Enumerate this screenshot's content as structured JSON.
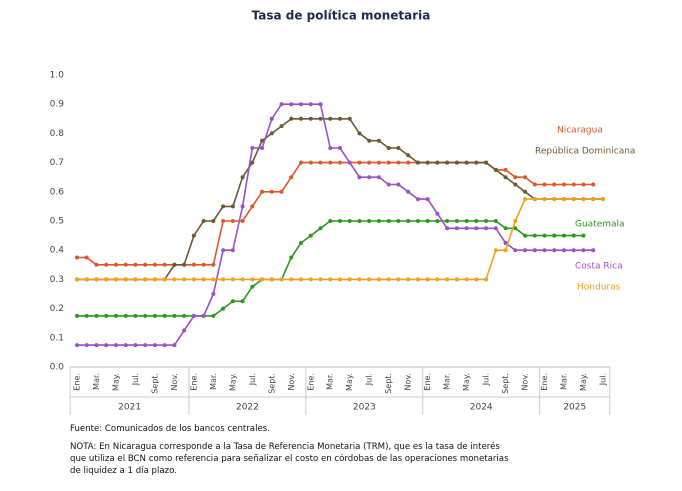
{
  "chart_data": {
    "type": "line",
    "title": "Tasa de política monetaria",
    "categories": [
      "Ene.",
      null,
      "Mar.",
      null,
      "May.",
      null,
      "Jul.",
      null,
      "Sept.",
      null,
      "Nov.",
      null,
      "Ene.",
      null,
      "Mar.",
      null,
      "May.",
      null,
      "Jul.",
      null,
      "Sept.",
      null,
      "Nov.",
      null,
      "Ene.",
      null,
      "Mar.",
      null,
      "May.",
      null,
      "Jul.",
      null,
      "Sept.",
      null,
      "Nov.",
      null,
      "Ene.",
      null,
      "Mar.",
      null,
      "May.",
      null,
      "Jul.",
      null,
      "Sept.",
      null,
      "Nov.",
      null,
      "Ene.",
      null,
      "Mar.",
      null,
      "May.",
      null,
      "Jul."
    ],
    "years": [
      "2021",
      "2022",
      "2023",
      "2024",
      "2025"
    ],
    "ylim": [
      0,
      1
    ],
    "yticks": [
      {
        "value": 0,
        "label": "0.0"
      },
      0.1,
      0.2,
      0.3,
      0.4,
      0.5,
      0.6,
      0.7,
      0.8,
      0.9,
      {
        "value": 1,
        "label": "1.0"
      }
    ],
    "grid": false,
    "series": [
      {
        "name": "Nicaragua",
        "color": "#e0562a",
        "values": [
          0.375,
          0.375,
          0.35,
          0.35,
          0.35,
          0.35,
          0.35,
          0.35,
          0.35,
          0.35,
          0.35,
          0.35,
          0.35,
          0.35,
          0.35,
          0.5,
          0.5,
          0.5,
          0.55,
          0.6,
          0.6,
          0.6,
          0.65,
          0.7,
          0.7,
          0.7,
          0.7,
          0.7,
          0.7,
          0.7,
          0.7,
          0.7,
          0.7,
          0.7,
          0.7,
          0.7,
          0.7,
          0.7,
          0.7,
          0.7,
          0.7,
          0.7,
          0.7,
          0.675,
          0.675,
          0.65,
          0.65,
          0.625,
          0.625,
          0.625,
          0.625,
          0.625,
          0.625,
          0.625,
          null
        ]
      },
      {
        "name": "República Dominicana",
        "color": "#6b5836",
        "values": [
          0.3,
          0.3,
          0.3,
          0.3,
          0.3,
          0.3,
          0.3,
          0.3,
          0.3,
          0.3,
          0.35,
          0.35,
          0.45,
          0.5,
          0.5,
          0.55,
          0.55,
          0.65,
          0.7,
          0.775,
          0.8,
          0.825,
          0.85,
          0.85,
          0.85,
          0.85,
          0.85,
          0.85,
          0.85,
          0.8,
          0.775,
          0.775,
          0.75,
          0.75,
          0.725,
          0.7,
          0.7,
          0.7,
          0.7,
          0.7,
          0.7,
          0.7,
          0.7,
          0.675,
          0.65,
          0.625,
          0.6,
          0.575,
          0.575,
          0.575,
          0.575,
          0.575,
          0.575,
          0.575,
          0.575
        ]
      },
      {
        "name": "Guatemala",
        "color": "#2a9a1a",
        "values": [
          0.175,
          0.175,
          0.175,
          0.175,
          0.175,
          0.175,
          0.175,
          0.175,
          0.175,
          0.175,
          0.175,
          0.175,
          0.175,
          0.175,
          0.175,
          0.2,
          0.225,
          0.225,
          0.275,
          0.3,
          0.3,
          0.3,
          0.375,
          0.425,
          0.45,
          0.475,
          0.5,
          0.5,
          0.5,
          0.5,
          0.5,
          0.5,
          0.5,
          0.5,
          0.5,
          0.5,
          0.5,
          0.5,
          0.5,
          0.5,
          0.5,
          0.5,
          0.5,
          0.5,
          0.475,
          0.475,
          0.45,
          0.45,
          0.45,
          0.45,
          0.45,
          0.45,
          0.45,
          null,
          null
        ]
      },
      {
        "name": "Costa Rica",
        "color": "#9b4fc8",
        "values": [
          0.075,
          0.075,
          0.075,
          0.075,
          0.075,
          0.075,
          0.075,
          0.075,
          0.075,
          0.075,
          0.075,
          0.125,
          0.175,
          0.175,
          0.25,
          0.4,
          0.4,
          0.55,
          0.75,
          0.75,
          0.85,
          0.9,
          0.9,
          0.9,
          0.9,
          0.9,
          0.75,
          0.75,
          0.7,
          0.65,
          0.65,
          0.65,
          0.625,
          0.625,
          0.6,
          0.575,
          0.575,
          0.525,
          0.475,
          0.475,
          0.475,
          0.475,
          0.475,
          0.475,
          0.425,
          0.4,
          0.4,
          0.4,
          0.4,
          0.4,
          0.4,
          0.4,
          0.4,
          0.4,
          null
        ]
      },
      {
        "name": "Honduras",
        "color": "#f0a020",
        "values": [
          0.3,
          0.3,
          0.3,
          0.3,
          0.3,
          0.3,
          0.3,
          0.3,
          0.3,
          0.3,
          0.3,
          0.3,
          0.3,
          0.3,
          0.3,
          0.3,
          0.3,
          0.3,
          0.3,
          0.3,
          0.3,
          0.3,
          0.3,
          0.3,
          0.3,
          0.3,
          0.3,
          0.3,
          0.3,
          0.3,
          0.3,
          0.3,
          0.3,
          0.3,
          0.3,
          0.3,
          0.3,
          0.3,
          0.3,
          0.3,
          0.3,
          0.3,
          0.3,
          0.4,
          0.4,
          0.5,
          0.575,
          0.575,
          0.575,
          0.575,
          0.575,
          0.575,
          0.575,
          0.575,
          0.575
        ]
      }
    ],
    "source": "Fuente: Comunicados de los bancos centrales.",
    "note": "NOTA: En Nicaragua corresponde a la Tasa de Referencia Monetaria (TRM), que es la tasa de interés que utiliza el BCN como referencia para señalizar el costo en córdobas de las operaciones monetarias de liquidez a 1 día plazo."
  }
}
